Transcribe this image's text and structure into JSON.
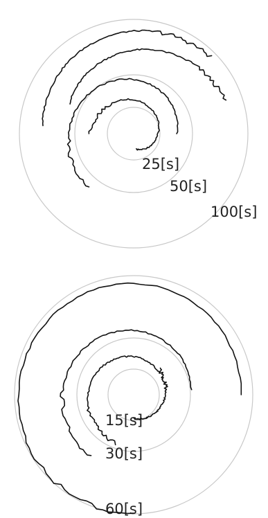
{
  "chart_data": [
    {
      "type": "polar-line",
      "radial_unit": "s",
      "rings": [
        {
          "label": "25[s]",
          "value": 25
        },
        {
          "label": "50[s]",
          "value": 50
        },
        {
          "label": "100[s]",
          "value": 100
        }
      ],
      "series": [
        {
          "start_deg": -80,
          "end_deg": 180,
          "r_start": 14,
          "r_end": 38
        },
        {
          "start_deg": 0,
          "end_deg": 230,
          "r_start": 38,
          "r_end": 62
        },
        {
          "start_deg": 155,
          "end_deg": 20,
          "r_start": 62,
          "r_end": 85
        },
        {
          "start_deg": 175,
          "end_deg": 45,
          "r_start": 80,
          "r_end": 95
        }
      ]
    },
    {
      "type": "polar-line",
      "radial_unit": "s",
      "rings": [
        {
          "label": "15[s]",
          "value": 15
        },
        {
          "label": "30[s]",
          "value": 30
        },
        {
          "label": "60[s]",
          "value": 60
        }
      ],
      "series": [
        {
          "start_deg": -90,
          "end_deg": 45,
          "r_start": 12,
          "r_end": 18
        },
        {
          "start_deg": 40,
          "end_deg": 250,
          "r_start": 17,
          "r_end": 26
        },
        {
          "start_deg": 5,
          "end_deg": 235,
          "r_start": 29,
          "r_end": 38
        },
        {
          "start_deg": 0,
          "end_deg": 270,
          "r_start": 54,
          "r_end": 60
        }
      ]
    }
  ]
}
